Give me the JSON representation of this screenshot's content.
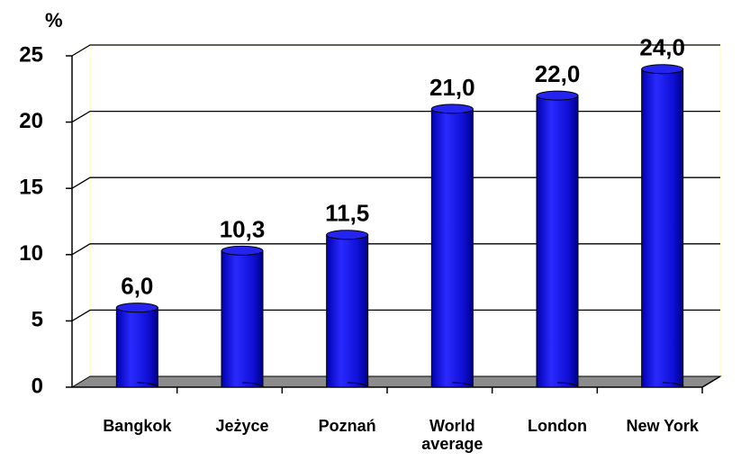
{
  "chart_data": {
    "type": "bar",
    "y_label": "%",
    "categories": [
      "Bangkok",
      "Jeżyce",
      "Poznań",
      "World average",
      "London",
      "New York"
    ],
    "values": [
      6.0,
      10.3,
      11.5,
      21.0,
      22.0,
      24.0
    ],
    "value_labels": [
      "6,0",
      "10,3",
      "11,5",
      "21,0",
      "22,0",
      "24,0"
    ],
    "color": "#1414e6",
    "ylim": [
      0,
      25
    ],
    "yticks": [
      0,
      5,
      10,
      15,
      20,
      25
    ],
    "grid": true
  }
}
